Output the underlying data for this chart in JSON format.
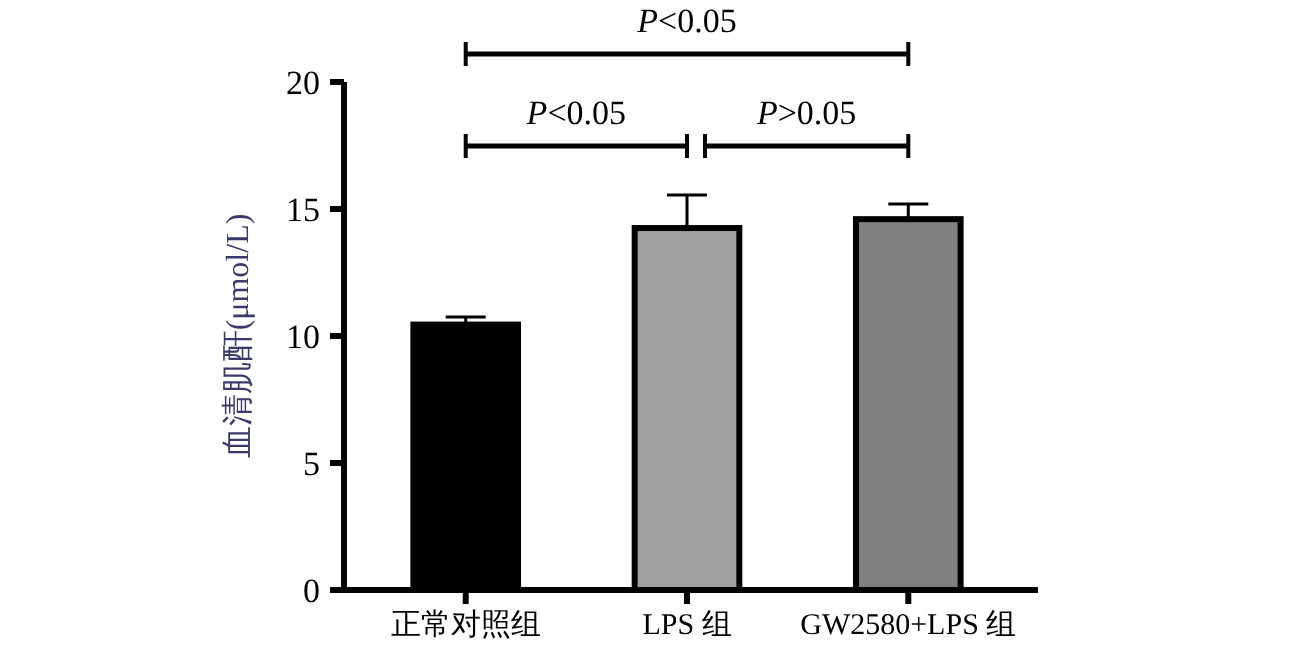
{
  "chart_data": {
    "type": "bar",
    "ylabel": "血清肌酐(μmol/L)",
    "categories": [
      "正常对照组",
      "LPS 组",
      "GW2580+LPS 组"
    ],
    "values": [
      10.45,
      14.25,
      14.6
    ],
    "colors": [
      "#000000",
      "#a0a0a0",
      "#808080"
    ],
    "errors": [
      0.3,
      1.3,
      0.6
    ],
    "ylim": [
      0,
      20
    ],
    "yticks": [
      0,
      5,
      10,
      15,
      20
    ],
    "grid": false,
    "annotations": [
      "P<0.05",
      "P<0.05",
      "P>0.05"
    ]
  }
}
